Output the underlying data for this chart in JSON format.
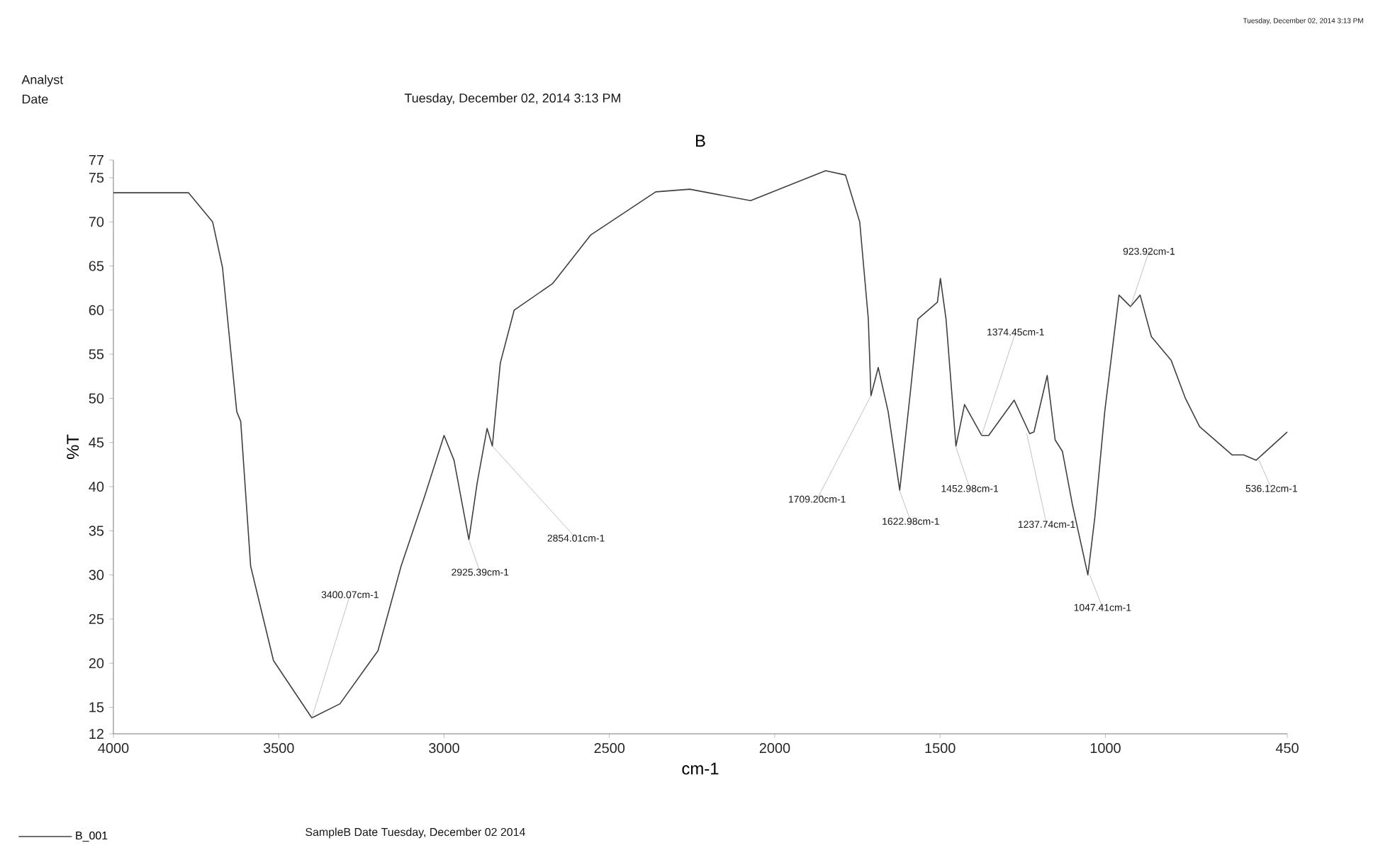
{
  "chart_data": {
    "type": "line",
    "title": "B",
    "xlabel": "cm-1",
    "ylabel": "%T",
    "xlim": [
      4000,
      450
    ],
    "ylim": [
      12,
      77
    ],
    "xticks": [
      4000,
      3500,
      3000,
      2500,
      2000,
      1500,
      1000,
      450
    ],
    "yticks": [
      12,
      15,
      20,
      25,
      30,
      35,
      40,
      45,
      50,
      55,
      60,
      65,
      70,
      75,
      77
    ],
    "legend": "bottom left",
    "series": [
      {
        "name": "B_001",
        "color": "#404040",
        "x": [
          4000,
          3773,
          3700,
          3670,
          3627,
          3615,
          3585,
          3516,
          3400,
          3315,
          3200,
          3130,
          3058,
          3000,
          2970,
          2925,
          2900,
          2870,
          2854,
          2830,
          2788,
          2672,
          2557,
          2360,
          2257,
          2073,
          1846,
          1786,
          1743,
          1717,
          1709,
          1687,
          1657,
          1622,
          1589,
          1567,
          1508,
          1499,
          1482,
          1452,
          1426,
          1374,
          1353,
          1276,
          1229,
          1216,
          1176,
          1152,
          1130,
          1100,
          1053,
          1032,
          1002,
          959,
          924,
          895,
          861,
          801,
          758,
          715,
          617,
          582,
          544,
          450
        ],
        "values": [
          73.3,
          73.3,
          70,
          64.8,
          48.5,
          47.4,
          31,
          20.3,
          13.8,
          15.4,
          21.4,
          31,
          39,
          45.8,
          43,
          34,
          40.4,
          46.6,
          44.6,
          54,
          60,
          63,
          68.5,
          73.4,
          73.7,
          72.4,
          75.8,
          75.3,
          70,
          59,
          50.3,
          53.5,
          48.5,
          39.6,
          51,
          59,
          60.9,
          63.6,
          59,
          44.6,
          49.3,
          45.8,
          45.8,
          49.8,
          46,
          46.2,
          52.6,
          45.3,
          44,
          38,
          30,
          36.5,
          48.5,
          61.7,
          60.4,
          61.7,
          57,
          54.3,
          50,
          46.8,
          43.6,
          43.6,
          43,
          46.2
        ]
      }
    ],
    "annotations": [
      {
        "text": "3400.07cm-1",
        "x": 3400.07,
        "y": 13.8
      },
      {
        "text": "2925.39cm-1",
        "x": 2925.39,
        "y": 34
      },
      {
        "text": "2854.01cm-1",
        "x": 2854.01,
        "y": 44.6
      },
      {
        "text": "1709.20cm-1",
        "x": 1709.2,
        "y": 50.3
      },
      {
        "text": "1622.98cm-1",
        "x": 1622.98,
        "y": 39.6
      },
      {
        "text": "1452.98cm-1",
        "x": 1452.98,
        "y": 44.6
      },
      {
        "text": "1374.45cm-1",
        "x": 1374.45,
        "y": 45.8
      },
      {
        "text": "1237.74cm-1",
        "x": 1237.74,
        "y": 46
      },
      {
        "text": "1047.41cm-1",
        "x": 1047.41,
        "y": 30
      },
      {
        "text": "923.92cm-1",
        "x": 923.92,
        "y": 60.4
      },
      {
        "text": "536.12cm-1",
        "x": 536.12,
        "y": 43
      },
      "Analyst",
      "Date",
      "Tuesday, December 02, 2014 3:13 PM",
      "Tuesday, December 02, 2014 3:13 PM",
      "SampleB Date Tuesday, December 02 2014"
    ]
  }
}
